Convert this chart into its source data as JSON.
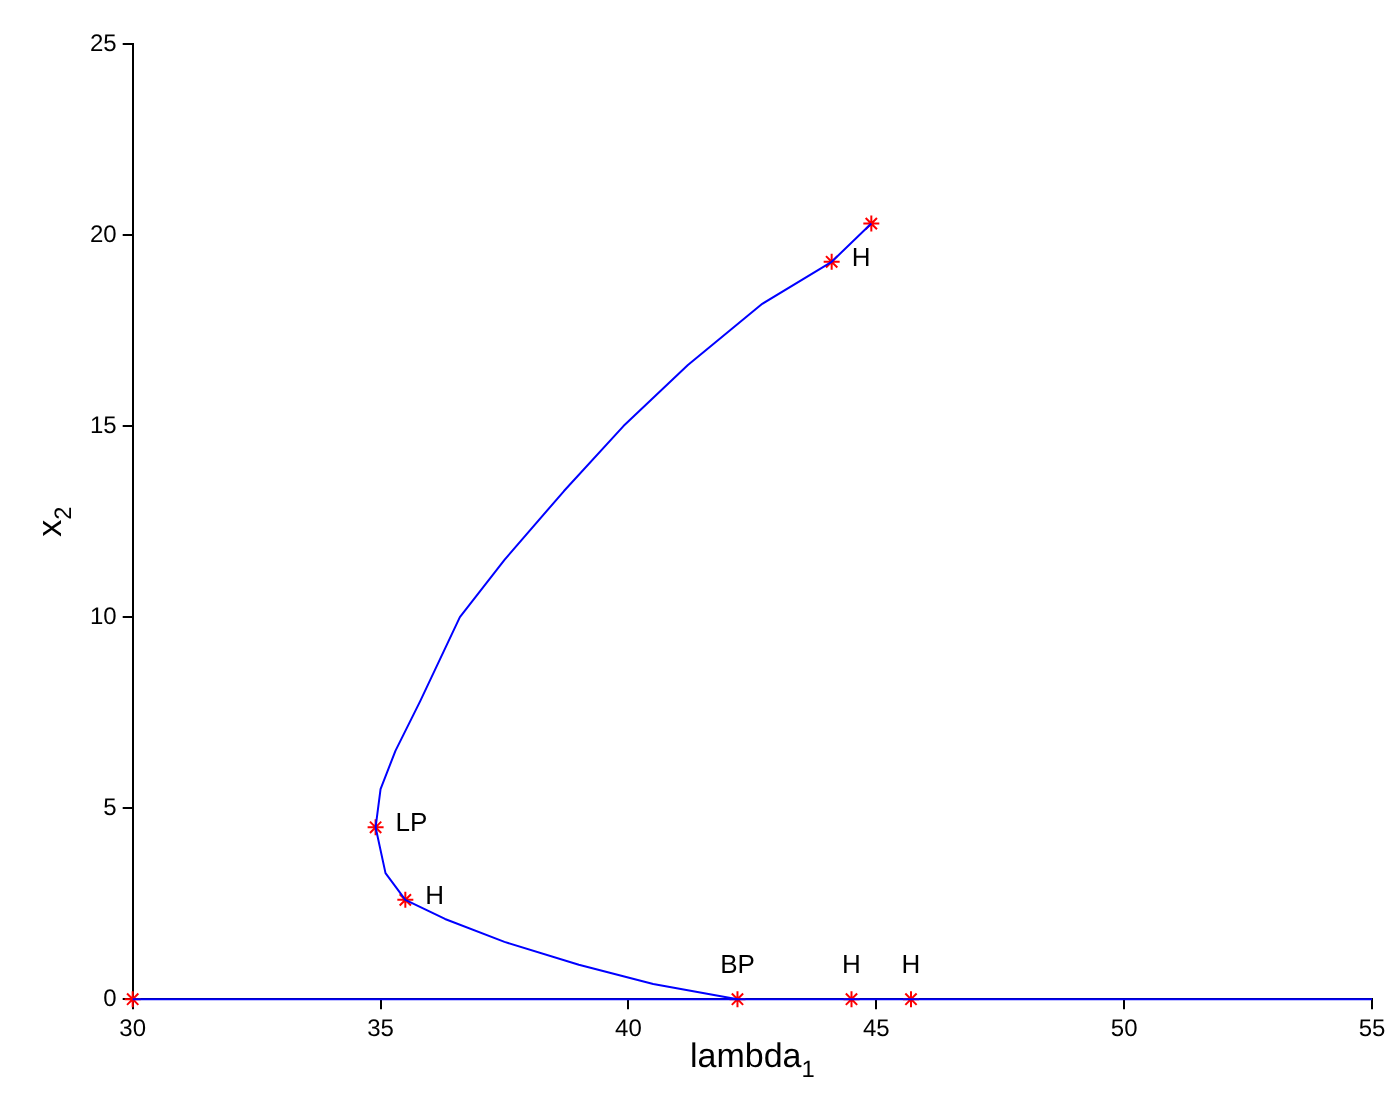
{
  "chart_data": {
    "type": "line",
    "xlabel": "lambda$_{1}$",
    "ylabel": "x$_{2}$",
    "xlim": [
      30,
      55
    ],
    "xticks": [
      30,
      35,
      40,
      45,
      50,
      55
    ],
    "ylim": [
      0,
      25
    ],
    "yticks": [
      0,
      5,
      10,
      15,
      20,
      25
    ],
    "grid": false,
    "legend": false,
    "line_style": "solid",
    "series": [
      {
        "type": "line",
        "color": "#0000ff",
        "marker": "none",
        "x": [
          42.2,
          40.5,
          39,
          37.5,
          36.3,
          35.5,
          35.1,
          34.9,
          35,
          35.3,
          35.8,
          36.6,
          37.5,
          38.7,
          39.9,
          41.2,
          42.7,
          44.1,
          44.9
        ],
        "values": [
          0,
          0.4,
          0.9,
          1.5,
          2.1,
          2.6,
          3.3,
          4.5,
          5.5,
          6.5,
          7.8,
          10,
          11.5,
          13.3,
          15,
          16.6,
          18.2,
          19.3,
          20.3
        ]
      },
      {
        "type": "line",
        "color": "#0000ff",
        "marker": "none",
        "x": [
          30,
          55
        ],
        "values": [
          0,
          0
        ]
      },
      {
        "type": "scatter",
        "color": "#ff0000",
        "marker": "cross",
        "x": [
          30,
          42.2,
          44.5,
          45.7,
          35.5,
          34.9,
          44.1,
          44.9
        ],
        "values": [
          0,
          0,
          0,
          0,
          2.6,
          4.5,
          19.3,
          20.3
        ]
      }
    ],
    "annotations": [
      {
        "text": "BP",
        "x": 42.2,
        "y": 0
      },
      {
        "text": "H",
        "x": 44.5,
        "y": 0
      },
      {
        "text": "H",
        "x": 45.7,
        "y": 0
      },
      {
        "text": "H",
        "x": 35.5,
        "y": 2.6
      },
      {
        "text": "LP",
        "x": 34.9,
        "y": 4.5
      },
      {
        "text": "H",
        "x": 44.1,
        "y": 19.3
      }
    ]
  }
}
